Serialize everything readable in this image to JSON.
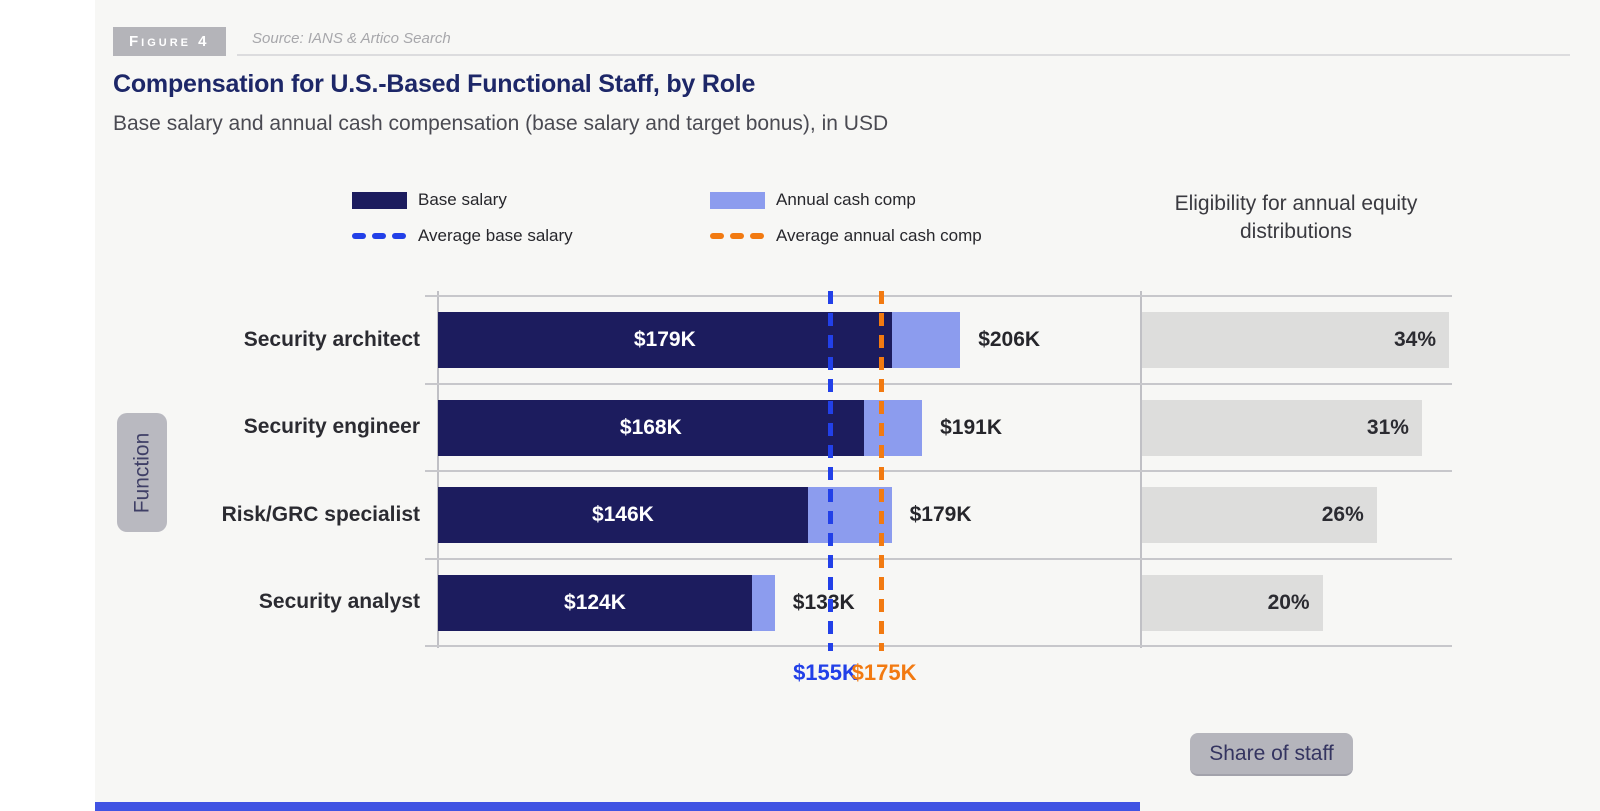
{
  "figure": {
    "badge": "Figure 4",
    "source": "Source: IANS & Artico Search"
  },
  "title": "Compensation for U.S.-Based Functional Staff, by Role",
  "subtitle": "Base salary and annual cash compensation (base salary and target bonus), in USD",
  "legend": {
    "base_salary": "Base salary",
    "annual_cash": "Annual cash comp",
    "avg_base": "Average base salary",
    "avg_annual": "Average annual cash comp"
  },
  "right_header": "Eligibility for annual equity distributions",
  "y_axis_label": "Function",
  "share_label": "Share of staff",
  "colors": {
    "base_bar": "#1c1c5e",
    "annual_bar": "#8c9cee",
    "avg_base_line": "#2240e8",
    "avg_annual_line": "#f27a11",
    "equity_bar": "#dddddc",
    "title_navy": "#1d2768"
  },
  "chart_data": {
    "type": "bar",
    "orientation": "horizontal",
    "title": "Compensation for U.S.-Based Functional Staff, by Role",
    "subtitle": "Base salary and annual cash compensation (base salary and target bonus), in USD",
    "categories": [
      "Security architect",
      "Security engineer",
      "Risk/GRC specialist",
      "Security analyst"
    ],
    "series": [
      {
        "name": "Base salary",
        "unit": "USD thousands",
        "values": [
          179,
          168,
          146,
          124
        ],
        "labels": [
          "$179K",
          "$168K",
          "$146K",
          "$124K"
        ]
      },
      {
        "name": "Annual cash comp",
        "unit": "USD thousands",
        "values": [
          206,
          191,
          179,
          133
        ],
        "labels": [
          "$206K",
          "$191K",
          "$179K",
          "$133K"
        ]
      },
      {
        "name": "Eligibility for annual equity distributions (share of staff)",
        "unit": "percent",
        "values": [
          34,
          31,
          26,
          20
        ],
        "labels": [
          "34%",
          "31%",
          "26%",
          "20%"
        ]
      }
    ],
    "average_lines": [
      {
        "name": "Average base salary",
        "value": 155,
        "label": "$155K"
      },
      {
        "name": "Average annual cash comp",
        "value": 175,
        "label": "$175K"
      }
    ],
    "x_axis_start": 0,
    "grid": true,
    "legend_position": "top"
  }
}
